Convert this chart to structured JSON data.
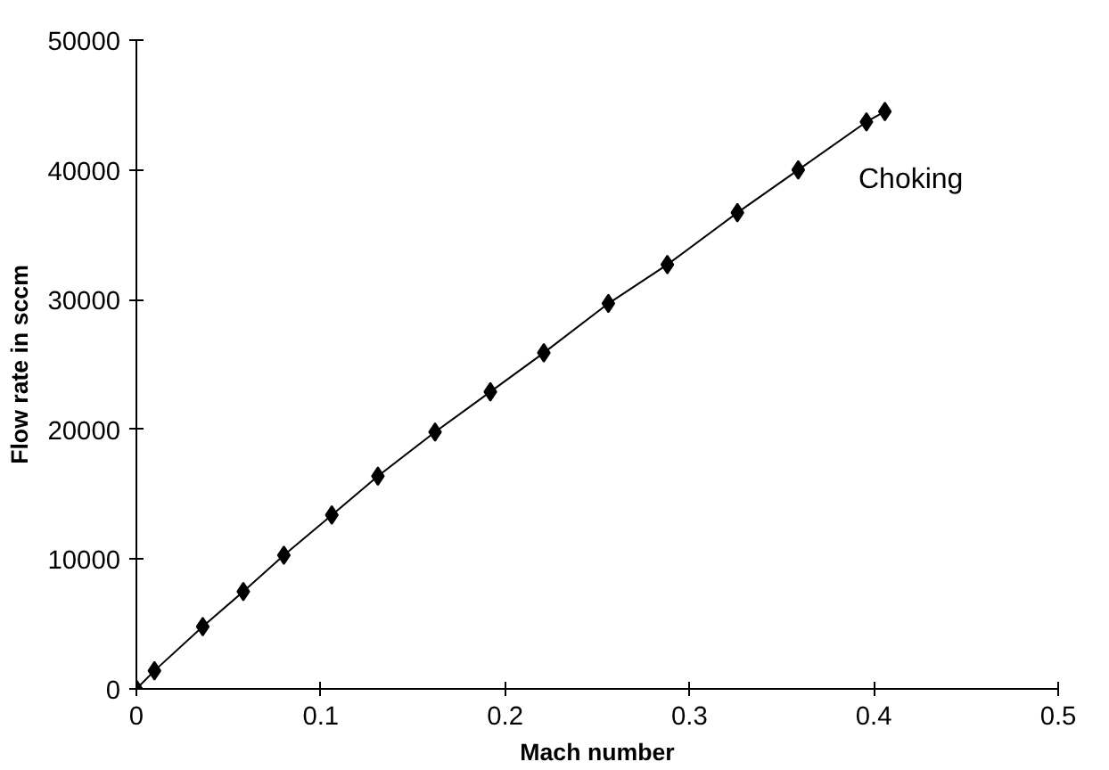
{
  "chart_data": {
    "type": "line",
    "xlabel": "Mach number",
    "ylabel": "Flow rate in sccm",
    "x": [
      0,
      0.0098,
      0.036,
      0.058,
      0.08,
      0.106,
      0.131,
      0.162,
      0.192,
      0.221,
      0.256,
      0.288,
      0.326,
      0.359,
      0.396,
      0.406
    ],
    "series": [
      {
        "color": "#000000",
        "values": [
          0,
          1400,
          4800,
          7500,
          10300,
          13400,
          16400,
          19800,
          22900,
          25900,
          29700,
          32700,
          36700,
          40000,
          43700,
          44500
        ]
      }
    ],
    "xlim": [
      0,
      0.5
    ],
    "ylim": [
      0,
      50000
    ],
    "xticks": [
      0,
      0.1,
      0.2,
      0.3,
      0.4,
      0.5
    ],
    "yticks": [
      0,
      10000,
      20000,
      30000,
      40000,
      50000
    ],
    "marker": "diamond",
    "line_style": "solid",
    "grid": false,
    "annotations": [
      "Choking"
    ]
  }
}
